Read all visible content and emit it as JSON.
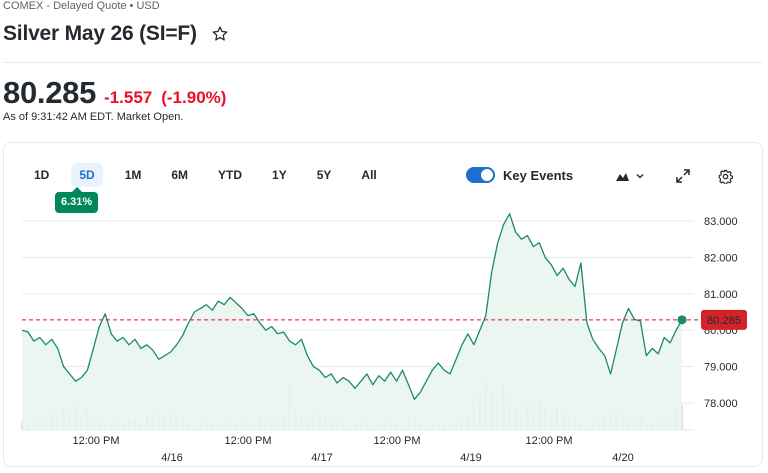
{
  "header": {
    "exchange": "COMEX - Delayed Quote • USD",
    "title": "Silver May 26 (SI=F)",
    "price": "80.285",
    "change": "-1.557",
    "change_pct": "(-1.90%)",
    "as_of": "As of 9:31:42 AM EDT. Market Open."
  },
  "toolbar": {
    "ranges": [
      "1D",
      "5D",
      "1M",
      "6M",
      "YTD",
      "1Y",
      "5Y",
      "All"
    ],
    "active_range": "5D",
    "period_change": "6.31%",
    "key_events_label": "Key Events",
    "key_events_on": true
  },
  "icons": {
    "favorite": "star-outline-icon",
    "chart_type": "mountain-chart-icon",
    "expand": "expand-icon",
    "settings": "gear-icon"
  },
  "colors": {
    "line": "#1a8a6a",
    "area": "#e8f4ef",
    "negative": "#eb0f29",
    "accent": "#1e6fd1",
    "badge": "#00875a"
  },
  "chart_data": {
    "type": "area",
    "current_value": 80.285,
    "current_label": "80.285",
    "ylim": [
      77.5,
      83.5
    ],
    "y_ticks": [
      "83.000",
      "82.000",
      "81.000",
      "80.000",
      "79.000",
      "78.000"
    ],
    "x_time_labels": [
      "12:00 PM",
      "12:00 PM",
      "12:00 PM",
      "12:00 PM"
    ],
    "x_date_labels": [
      "4/16",
      "4/17",
      "4/19",
      "4/20"
    ],
    "series": [
      {
        "values": [
          80.0,
          79.95,
          79.7,
          79.8,
          79.6,
          79.75,
          79.5,
          79.0,
          78.8,
          78.6,
          78.7,
          78.9,
          79.5,
          80.1,
          80.45,
          79.9,
          79.7,
          79.8,
          79.6,
          79.75,
          79.5,
          79.6,
          79.45,
          79.2,
          79.3,
          79.4,
          79.6,
          79.85,
          80.2,
          80.5,
          80.6,
          80.7,
          80.55,
          80.8,
          80.7,
          80.9,
          80.75,
          80.6,
          80.4,
          80.45,
          80.2,
          80.0,
          80.1,
          79.9,
          79.95,
          79.7,
          79.6,
          79.75,
          79.3,
          79.0,
          78.9,
          78.7,
          78.8,
          78.55,
          78.7,
          78.6,
          78.4,
          78.6,
          78.8,
          78.5,
          78.75,
          78.6,
          78.85,
          78.6,
          78.9,
          78.5,
          78.1,
          78.3,
          78.6,
          78.9,
          79.1,
          78.9,
          78.8,
          79.2,
          79.6,
          79.9,
          79.6,
          80.0,
          80.4,
          81.6,
          82.4,
          82.9,
          83.2,
          82.7,
          82.5,
          82.6,
          82.3,
          82.4,
          82.0,
          81.8,
          81.5,
          81.7,
          81.4,
          81.2,
          81.85,
          80.2,
          79.75,
          79.5,
          79.3,
          78.8,
          79.5,
          80.2,
          80.6,
          80.3,
          80.25,
          79.3,
          79.5,
          79.35,
          79.8,
          79.65,
          80.0,
          80.285
        ]
      }
    ],
    "volume": {
      "values": [
        0.15,
        0.1,
        0.2,
        0.12,
        0.18,
        0.35,
        0.2,
        0.45,
        0.3,
        0.5,
        0.25,
        0.4,
        0.15,
        0.2,
        0.1,
        0.15,
        0.25,
        0.12,
        0.18,
        0.2,
        0.15,
        0.3,
        0.2,
        0.35,
        0.25,
        0.4,
        0.3,
        0.2,
        0.12,
        0.1,
        0.15,
        0.2,
        0.12,
        0.1,
        0.18,
        0.15,
        0.12,
        0.2,
        0.1,
        0.15,
        0.25,
        0.2,
        0.15,
        0.3,
        0.25,
        0.9,
        0.4,
        0.3,
        0.2,
        0.35,
        0.25,
        0.3,
        0.2,
        0.15,
        0.2,
        0.1,
        0.15,
        0.2,
        0.12,
        0.1,
        0.15,
        0.12,
        0.2,
        0.15,
        0.1,
        0.25,
        0.18,
        0.12,
        0.1,
        0.12,
        0.15,
        0.1,
        0.12,
        0.15,
        0.2,
        0.3,
        0.5,
        0.7,
        1.0,
        0.8,
        0.6,
        0.9,
        0.5,
        0.4,
        0.3,
        0.55,
        0.35,
        0.6,
        0.4,
        0.3,
        0.45,
        0.35,
        0.25,
        0.2,
        0.15,
        0.1,
        0.12,
        0.2,
        0.3,
        0.4,
        0.25,
        0.35,
        0.2,
        0.15,
        0.25,
        0.1,
        0.15,
        0.2,
        0.25,
        0.15,
        0.4,
        0.5
      ]
    }
  }
}
